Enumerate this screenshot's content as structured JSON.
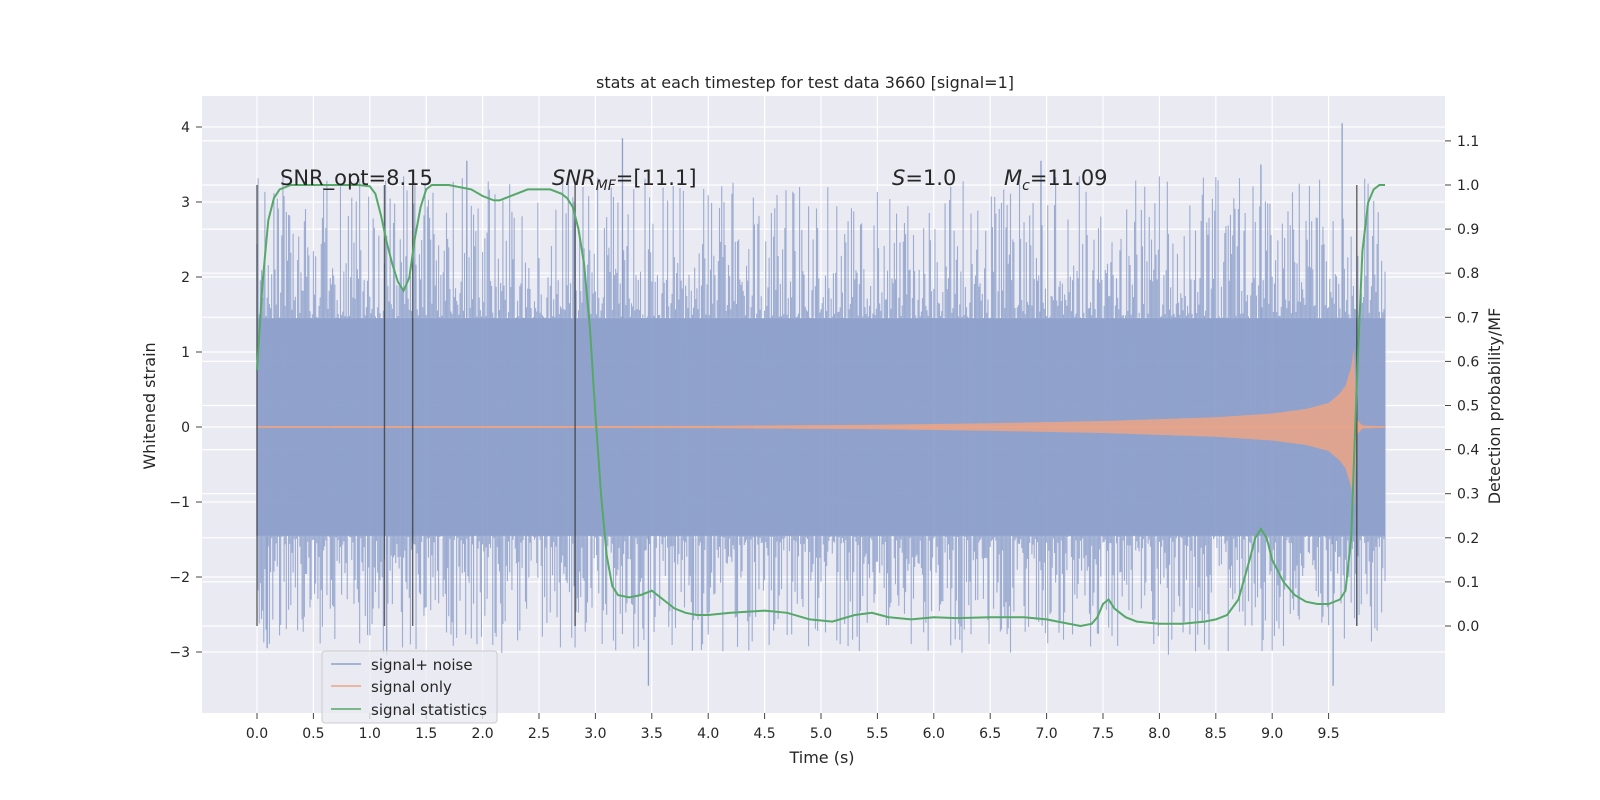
{
  "chart_data": {
    "type": "line",
    "title": "stats at each timestep for test data 3660 [signal=1]",
    "xlabel": "Time (s)",
    "ylabel_left": "Whitened strain",
    "ylabel_right": "Detection probability/MF",
    "xlim": [
      -0.5,
      10.5
    ],
    "ylim_left": [
      -3.8,
      4.4
    ],
    "ylim_right": [
      -0.2,
      1.2
    ],
    "x_ticks": [
      "0.0",
      "0.5",
      "1.0",
      "1.5",
      "2.0",
      "2.5",
      "3.0",
      "3.5",
      "4.0",
      "4.5",
      "5.0",
      "5.5",
      "6.0",
      "6.5",
      "7.0",
      "7.5",
      "8.0",
      "8.5",
      "9.0",
      "9.5"
    ],
    "y_left_ticks": [
      "4",
      "3",
      "2",
      "1",
      "0",
      "−1",
      "−2",
      "−3"
    ],
    "y_right_ticks": [
      "1.1",
      "1.0",
      "0.9",
      "0.8",
      "0.7",
      "0.6",
      "0.5",
      "0.4",
      "0.3",
      "0.2",
      "0.1",
      "0.0"
    ],
    "grid": true,
    "legend_position": "lower-left",
    "annotations": {
      "snr_opt": "SNR_opt=8.15",
      "snr_mf_main": "SNR",
      "snr_mf_sub": "MF",
      "snr_mf_value": "=[11.1]",
      "s_var": "S",
      "s_value": "=1.0",
      "mc_main": "M",
      "mc_sub": "c",
      "mc_value": "=11.09"
    },
    "vertical_markers_s": [
      0.0,
      1.13,
      1.38,
      2.82,
      9.75
    ],
    "series": [
      {
        "name": "signal+ noise",
        "color": "#8da0cb",
        "axis": "left",
        "t_range": [
          0.0,
          10.0
        ],
        "envelope_core": 1.45,
        "peak_extremes": [
          {
            "t": 1.86,
            "y": 3.55
          },
          {
            "t": 3.24,
            "y": 3.85
          },
          {
            "t": 9.62,
            "y": 4.05
          },
          {
            "t": 6.95,
            "y": 3.55
          },
          {
            "t": 8.9,
            "y": 3.5
          },
          {
            "t": 3.47,
            "y": -3.45
          },
          {
            "t": 9.54,
            "y": -3.45
          },
          {
            "t": 0.09,
            "y": -2.95
          },
          {
            "t": 1.15,
            "y": -3.05
          }
        ]
      },
      {
        "name": "signal only",
        "color": "#e8a488",
        "axis": "left",
        "envelope_t": [
          0.0,
          4.0,
          5.5,
          6.5,
          7.5,
          8.5,
          9.0,
          9.3,
          9.5,
          9.6,
          9.65,
          9.7,
          9.72,
          9.75,
          9.8,
          10.0
        ],
        "envelope_amp": [
          0.01,
          0.015,
          0.03,
          0.05,
          0.08,
          0.13,
          0.18,
          0.24,
          0.32,
          0.45,
          0.55,
          0.8,
          1.25,
          0.1,
          0.02,
          0.01
        ]
      },
      {
        "name": "signal statistics",
        "color": "#55a868",
        "axis": "right",
        "x": [
          0.0,
          0.05,
          0.1,
          0.15,
          0.2,
          0.3,
          0.5,
          0.7,
          0.9,
          1.0,
          1.05,
          1.1,
          1.15,
          1.2,
          1.25,
          1.3,
          1.35,
          1.4,
          1.45,
          1.5,
          1.55,
          1.6,
          1.7,
          1.9,
          2.0,
          2.1,
          2.15,
          2.2,
          2.3,
          2.4,
          2.5,
          2.6,
          2.7,
          2.75,
          2.8,
          2.85,
          2.9,
          2.95,
          3.0,
          3.05,
          3.1,
          3.15,
          3.2,
          3.3,
          3.4,
          3.5,
          3.6,
          3.7,
          3.8,
          3.9,
          4.0,
          4.2,
          4.5,
          4.7,
          4.9,
          5.1,
          5.3,
          5.45,
          5.6,
          5.8,
          6.0,
          6.2,
          6.5,
          6.8,
          7.0,
          7.1,
          7.3,
          7.4,
          7.45,
          7.5,
          7.55,
          7.6,
          7.7,
          7.8,
          8.0,
          8.2,
          8.4,
          8.5,
          8.6,
          8.7,
          8.8,
          8.85,
          8.9,
          8.95,
          9.0,
          9.1,
          9.2,
          9.3,
          9.4,
          9.5,
          9.6,
          9.65,
          9.7,
          9.75,
          9.8,
          9.85,
          9.9,
          9.95,
          10.0
        ],
        "y": [
          0.58,
          0.78,
          0.92,
          0.97,
          0.99,
          1.0,
          1.0,
          1.0,
          1.0,
          0.997,
          0.98,
          0.93,
          0.87,
          0.82,
          0.78,
          0.76,
          0.79,
          0.88,
          0.95,
          0.99,
          1.0,
          1.0,
          1.0,
          0.99,
          0.975,
          0.965,
          0.965,
          0.97,
          0.98,
          0.99,
          0.99,
          0.99,
          0.98,
          0.97,
          0.95,
          0.9,
          0.82,
          0.68,
          0.48,
          0.3,
          0.16,
          0.09,
          0.07,
          0.065,
          0.07,
          0.08,
          0.06,
          0.04,
          0.03,
          0.025,
          0.025,
          0.03,
          0.035,
          0.03,
          0.015,
          0.01,
          0.025,
          0.03,
          0.02,
          0.015,
          0.02,
          0.018,
          0.02,
          0.02,
          0.015,
          0.01,
          0.0,
          0.005,
          0.02,
          0.05,
          0.06,
          0.04,
          0.02,
          0.01,
          0.005,
          0.005,
          0.01,
          0.015,
          0.025,
          0.06,
          0.15,
          0.2,
          0.22,
          0.2,
          0.15,
          0.1,
          0.07,
          0.055,
          0.05,
          0.05,
          0.06,
          0.08,
          0.2,
          0.55,
          0.85,
          0.96,
          0.99,
          1.0,
          1.0
        ]
      }
    ]
  }
}
